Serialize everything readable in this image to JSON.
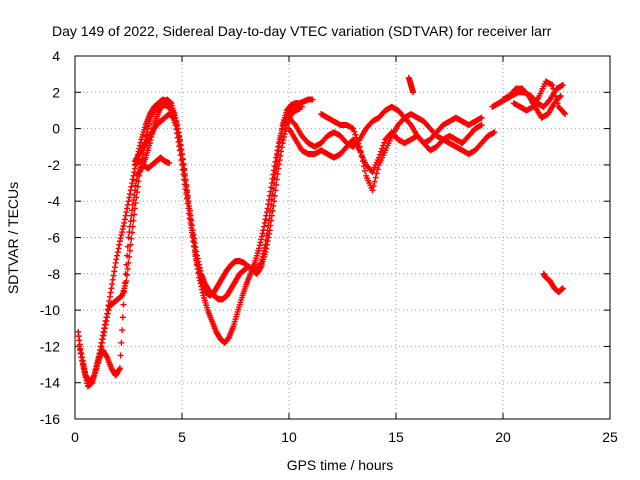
{
  "chart_data": {
    "type": "scatter",
    "title": "Day 149 of 2022, Sidereal Day-to-day VTEC variation (SDTVAR) for receiver larr",
    "xlabel": "GPS time / hours",
    "ylabel": "SDTVAR / TECUs",
    "xlim": [
      0,
      25
    ],
    "ylim": [
      -16,
      4
    ],
    "xticks": [
      0,
      5,
      10,
      15,
      20,
      25
    ],
    "yticks": [
      -16,
      -14,
      -12,
      -10,
      -8,
      -6,
      -4,
      -2,
      0,
      2,
      4
    ],
    "grid": true,
    "legend": "none",
    "marker": "plus",
    "color": "#ff0000",
    "series": [
      {
        "x": [
          0.15,
          0.3,
          0.5,
          0.7,
          0.9,
          1.1,
          1.3,
          1.5,
          1.7,
          1.9,
          2.1,
          2.3,
          2.5,
          2.7,
          2.9,
          3.1,
          3.3,
          3.5,
          3.7,
          3.9,
          4.1,
          4.3,
          4.5,
          4.7,
          4.9,
          5.1,
          5.3,
          5.5,
          5.7,
          5.9,
          6.1,
          6.3,
          6.5,
          6.7,
          6.9,
          7.1,
          7.3,
          7.5,
          7.7,
          7.9,
          8.1,
          8.3,
          8.5,
          8.7,
          8.9,
          9.1,
          9.3,
          9.5,
          9.7,
          9.9,
          10.1,
          10.3,
          10.5,
          10.7,
          10.9,
          11.1
        ],
        "y": [
          -11.2,
          -12.6,
          -13.6,
          -14.0,
          -13.6,
          -12.6,
          -11.4,
          -10.2,
          -8.8,
          -7.4,
          -6.2,
          -5.2,
          -4.0,
          -2.8,
          -1.6,
          -0.6,
          0.2,
          0.8,
          1.2,
          1.4,
          1.6,
          1.5,
          1.0,
          0.2,
          -1.2,
          -2.8,
          -4.4,
          -6.0,
          -7.4,
          -8.4,
          -9.0,
          -9.2,
          -9.0,
          -8.6,
          -8.2,
          -7.8,
          -7.5,
          -7.3,
          -7.3,
          -7.4,
          -7.6,
          -7.8,
          -7.8,
          -7.4,
          -6.4,
          -4.8,
          -3.0,
          -1.2,
          0.2,
          1.0,
          1.3,
          1.4,
          1.4,
          1.5,
          1.6,
          1.6
        ]
      },
      {
        "x": [
          0.2,
          0.4,
          0.6,
          0.8,
          1.0,
          1.2,
          1.4,
          1.6,
          1.8,
          2.0,
          2.2,
          2.4,
          2.6,
          2.8,
          3.0,
          3.2,
          3.4,
          3.6,
          3.8,
          4.0,
          4.2,
          4.4,
          4.6,
          4.8,
          5.0,
          5.2,
          5.4,
          5.6,
          5.8,
          6.0,
          6.2,
          6.4,
          6.6,
          6.8,
          7.0,
          7.2,
          7.4,
          7.6,
          7.8,
          8.0,
          8.2,
          8.4,
          8.6,
          8.8,
          9.0,
          9.2,
          9.4,
          9.6,
          9.8,
          10.0,
          10.2,
          10.4,
          10.6
        ],
        "y": [
          -12.0,
          -13.2,
          -14.2,
          -14.0,
          -13.2,
          -12.2,
          -11.0,
          -9.8,
          -9.6,
          -9.4,
          -9.2,
          -8.4,
          -6.4,
          -4.4,
          -2.6,
          -1.2,
          0.0,
          0.8,
          1.1,
          1.2,
          1.3,
          1.2,
          0.9,
          0.0,
          -1.4,
          -3.2,
          -5.0,
          -6.8,
          -8.2,
          -9.2,
          -10.0,
          -10.6,
          -11.2,
          -11.6,
          -11.8,
          -11.5,
          -10.9,
          -10.1,
          -9.3,
          -8.6,
          -8.0,
          -7.4,
          -6.6,
          -5.6,
          -4.4,
          -3.0,
          -1.6,
          -0.4,
          0.4,
          0.9,
          1.1,
          1.2,
          1.2
        ]
      },
      {
        "x": [
          0.3,
          0.5,
          0.7,
          0.9,
          1.1,
          1.3,
          1.5,
          1.7,
          1.9,
          2.1,
          2.3,
          2.5,
          2.7,
          2.9,
          3.1,
          3.3,
          3.5,
          3.7,
          3.9,
          4.1,
          4.3,
          4.5,
          4.7,
          4.9,
          5.1,
          5.3,
          5.5,
          5.7,
          5.9,
          6.1,
          6.3,
          6.5,
          6.7,
          6.9,
          7.1,
          7.3,
          7.5,
          7.7,
          7.9,
          8.1,
          8.3,
          8.5,
          8.7,
          8.9,
          9.1,
          9.3,
          9.5,
          9.7,
          9.9,
          10.1,
          10.3,
          10.5
        ],
        "y": [
          -12.4,
          -13.6,
          -14.1,
          -13.6,
          -12.8,
          -12.2,
          -12.6,
          -13.2,
          -13.6,
          -13.2,
          -9.0,
          -6.0,
          -4.2,
          -2.6,
          -2.2,
          -1.6,
          -0.8,
          0.2,
          0.9,
          1.4,
          1.6,
          1.4,
          0.6,
          -0.6,
          -2.2,
          -4.0,
          -5.6,
          -7.0,
          -8.0,
          -8.6,
          -9.0,
          -9.2,
          -9.4,
          -9.4,
          -9.2,
          -8.8,
          -8.4,
          -8.0,
          -7.8,
          -7.6,
          -7.8,
          -8.0,
          -7.6,
          -6.8,
          -5.6,
          -4.0,
          -2.2,
          -0.8,
          0.2,
          0.8,
          1.0,
          1.1
        ]
      },
      {
        "x": [
          2.8,
          3.0,
          3.2,
          3.4,
          3.6,
          3.8,
          4.0,
          4.2,
          4.4,
          4.6
        ],
        "y": [
          -1.8,
          -1.4,
          -1.0,
          -0.6,
          -0.2,
          0.2,
          0.4,
          0.6,
          0.8,
          0.6
        ]
      },
      {
        "x": [
          2.8,
          3.0,
          3.2,
          3.4,
          3.6,
          3.8,
          4.0,
          4.2,
          4.4
        ],
        "y": [
          -2.0,
          -1.8,
          -2.0,
          -2.2,
          -2.0,
          -1.8,
          -1.6,
          -1.8,
          -1.9
        ]
      },
      {
        "x": [
          10.0,
          10.3,
          10.6,
          10.9,
          11.2,
          11.5,
          11.8,
          12.1,
          12.4,
          12.7,
          13.0,
          13.3,
          13.6,
          13.9,
          14.2,
          14.5,
          14.8,
          15.1,
          15.4,
          15.7,
          16.0,
          16.3,
          16.6,
          16.9,
          17.2,
          17.5,
          17.8,
          18.1,
          18.4,
          18.7,
          19.0
        ],
        "y": [
          0.6,
          0.2,
          -0.4,
          -0.8,
          -1.0,
          -0.8,
          -0.4,
          -0.2,
          -0.4,
          -0.8,
          -1.0,
          -0.6,
          0.0,
          0.4,
          0.6,
          1.0,
          1.2,
          1.0,
          0.6,
          0.2,
          -0.4,
          -0.8,
          -0.6,
          -0.2,
          0.2,
          0.4,
          0.6,
          0.4,
          0.2,
          0.4,
          0.6
        ]
      },
      {
        "x": [
          10.0,
          10.3,
          10.6,
          10.9,
          11.2,
          11.5,
          11.8,
          12.1,
          12.4,
          12.7,
          13.0,
          13.3,
          13.6,
          13.9,
          14.2,
          14.5,
          14.8,
          15.1,
          15.4,
          15.7,
          16.0,
          16.3,
          16.6,
          16.9,
          17.2,
          17.5,
          17.8,
          18.1,
          18.4,
          18.7,
          19.0
        ],
        "y": [
          0.0,
          -0.6,
          -1.2,
          -1.4,
          -1.4,
          -1.2,
          -1.4,
          -1.6,
          -1.4,
          -1.0,
          -0.6,
          -1.2,
          -2.0,
          -2.4,
          -1.6,
          -0.6,
          -0.2,
          -0.6,
          -0.8,
          -0.6,
          -0.4,
          -0.8,
          -1.2,
          -1.0,
          -0.6,
          -0.4,
          -0.6,
          -0.8,
          -0.4,
          0.0,
          0.2
        ]
      },
      {
        "x": [
          11.5,
          11.8,
          12.1,
          12.4,
          12.7,
          13.0,
          13.3,
          13.6,
          13.9,
          14.2,
          14.5,
          14.8,
          15.1,
          15.4,
          15.7,
          16.0,
          16.3,
          16.6,
          16.9,
          17.2,
          17.5,
          17.8,
          18.1,
          18.4,
          18.7,
          19.0,
          19.3,
          19.6
        ],
        "y": [
          0.8,
          0.6,
          0.4,
          0.2,
          0.2,
          0.0,
          -1.0,
          -2.6,
          -3.4,
          -2.0,
          -1.2,
          -0.4,
          0.2,
          0.6,
          0.8,
          0.6,
          0.4,
          0.0,
          -0.4,
          -0.6,
          -0.8,
          -1.0,
          -1.2,
          -1.4,
          -1.2,
          -0.8,
          -0.4,
          -0.2
        ]
      },
      {
        "x": [
          15.6,
          15.7,
          15.8
        ],
        "y": [
          2.8,
          2.4,
          2.0
        ]
      },
      {
        "x": [
          19.5,
          19.8,
          20.1,
          20.4,
          20.7,
          21.0,
          21.3,
          21.6,
          21.9,
          22.2,
          22.5,
          22.8
        ],
        "y": [
          1.2,
          1.4,
          1.6,
          1.8,
          2.0,
          2.0,
          1.8,
          1.4,
          1.2,
          1.6,
          2.2,
          2.4
        ]
      },
      {
        "x": [
          20.0,
          20.3,
          20.6,
          20.9,
          21.2,
          21.5,
          21.8,
          22.1,
          22.4,
          22.7
        ],
        "y": [
          1.6,
          1.8,
          2.2,
          2.2,
          1.8,
          1.2,
          0.6,
          0.8,
          1.4,
          1.8
        ]
      },
      {
        "x": [
          20.5,
          20.8,
          21.1,
          21.4,
          21.7,
          22.0,
          22.3,
          22.6,
          22.9
        ],
        "y": [
          1.4,
          1.2,
          1.0,
          1.2,
          1.8,
          2.6,
          2.4,
          1.2,
          0.8
        ]
      },
      {
        "x": [
          21.9,
          22.0,
          22.2,
          22.4,
          22.6,
          22.8
        ],
        "y": [
          -8.0,
          -8.2,
          -8.4,
          -8.8,
          -9.0,
          -8.8
        ]
      }
    ]
  }
}
